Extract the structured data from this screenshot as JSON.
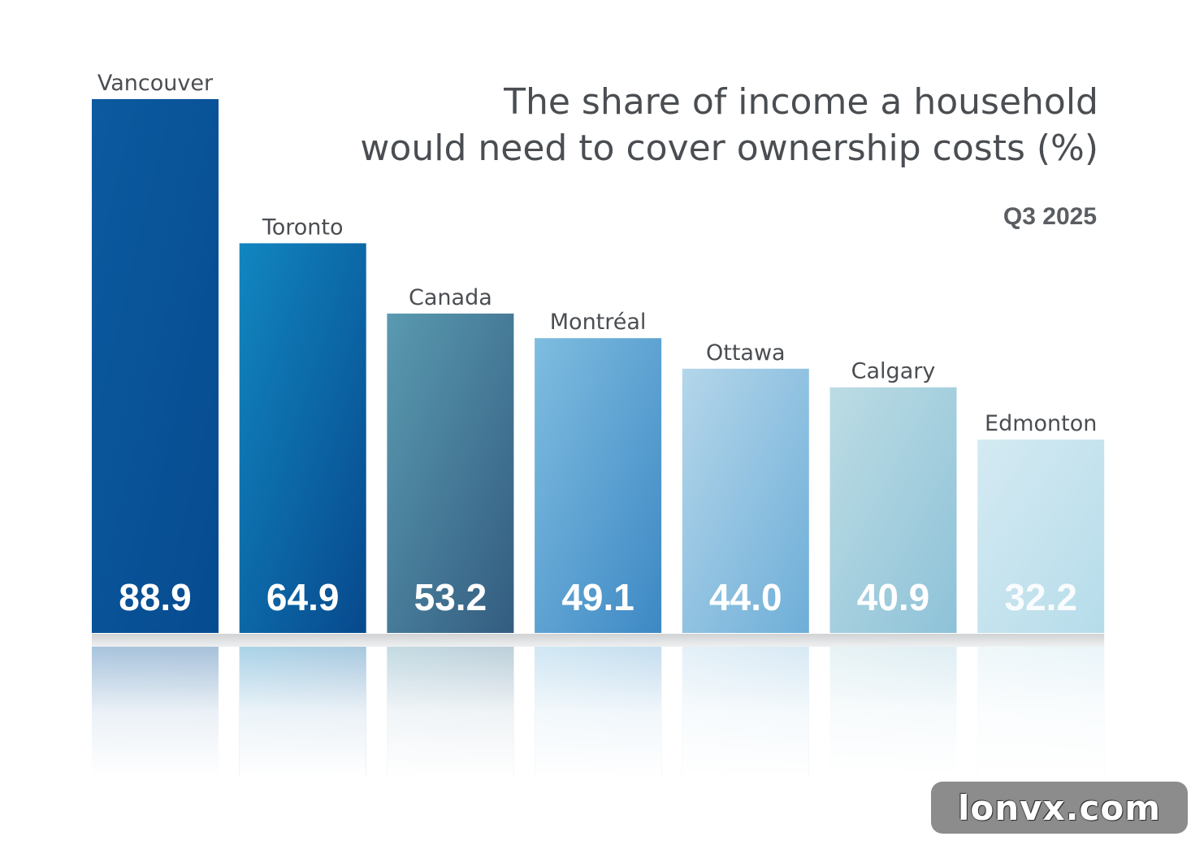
{
  "chart_data": {
    "type": "bar",
    "title": "The share of income a household would need to cover ownership costs (%)",
    "title_lines": [
      "The share of income a household",
      "would need to cover ownership costs (%)"
    ],
    "subtitle": "Q3 2025",
    "categories": [
      "Vancouver",
      "Toronto",
      "Canada",
      "Montréal",
      "Ottawa",
      "Calgary",
      "Edmonton"
    ],
    "values": [
      88.9,
      64.9,
      53.2,
      49.1,
      44.0,
      40.9,
      32.2
    ],
    "value_labels": [
      "88.9",
      "64.9",
      "53.2",
      "49.1",
      "44.0",
      "40.9",
      "32.2"
    ],
    "colors": [
      [
        "#0c5aa0",
        "#064b8f"
      ],
      [
        "#1186c0",
        "#07498d"
      ],
      [
        "#5a9ab0",
        "#335c80"
      ],
      [
        "#7fbde0",
        "#3d88c4"
      ],
      [
        "#b4d6ea",
        "#6eaed8"
      ],
      [
        "#bcdce4",
        "#8ec2d8"
      ],
      [
        "#d4eaf2",
        "#b6dcea"
      ]
    ],
    "xlabel": "",
    "ylabel": "",
    "ylim": [
      0,
      100
    ],
    "grid": false,
    "legend": "none"
  },
  "watermark": "lonvx.com"
}
